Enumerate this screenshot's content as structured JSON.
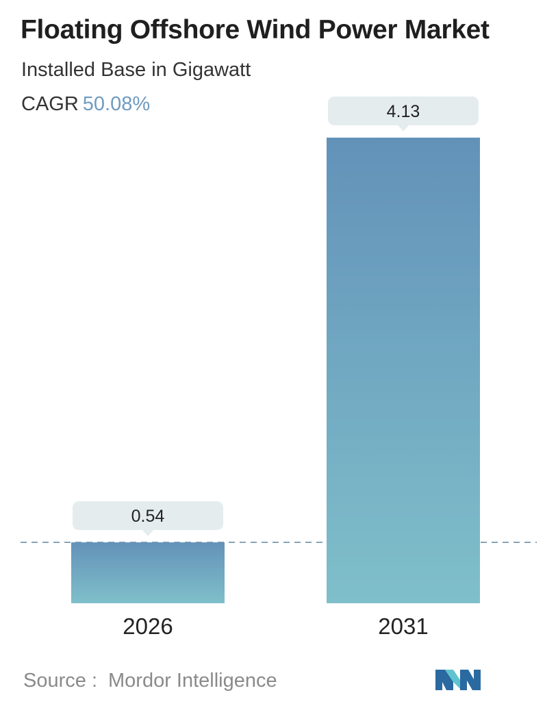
{
  "header": {
    "title": "Floating Offshore Wind Power Market",
    "subtitle": "Installed Base in Gigawatt",
    "cagr_label": "CAGR",
    "cagr_value": "50.08%"
  },
  "chart_data": {
    "type": "bar",
    "title": "Floating Offshore Wind Power Market",
    "subtitle": "Installed Base in Gigawatt",
    "categories": [
      "2026",
      "2031"
    ],
    "values": [
      0.54,
      4.13
    ],
    "value_labels": [
      "0.54",
      "4.13"
    ],
    "xlabel": "",
    "ylabel": "",
    "ylim": [
      0,
      4.13
    ],
    "grid": false,
    "reference_line_at": 0.54
  },
  "colors": {
    "bar_top": "#6392b9",
    "bar_bottom": "#7fbfca",
    "label_box": "#e4ecee",
    "reference_line": "#6b8fa8",
    "cagr_value": "#6f9bc0",
    "logo_dark": "#2a6aa0",
    "logo_light": "#5fc4cf"
  },
  "footer": {
    "source_label": "Source :",
    "source_value": "Mordor Intelligence",
    "logo_icon": "mordor-intelligence-logo-icon"
  }
}
